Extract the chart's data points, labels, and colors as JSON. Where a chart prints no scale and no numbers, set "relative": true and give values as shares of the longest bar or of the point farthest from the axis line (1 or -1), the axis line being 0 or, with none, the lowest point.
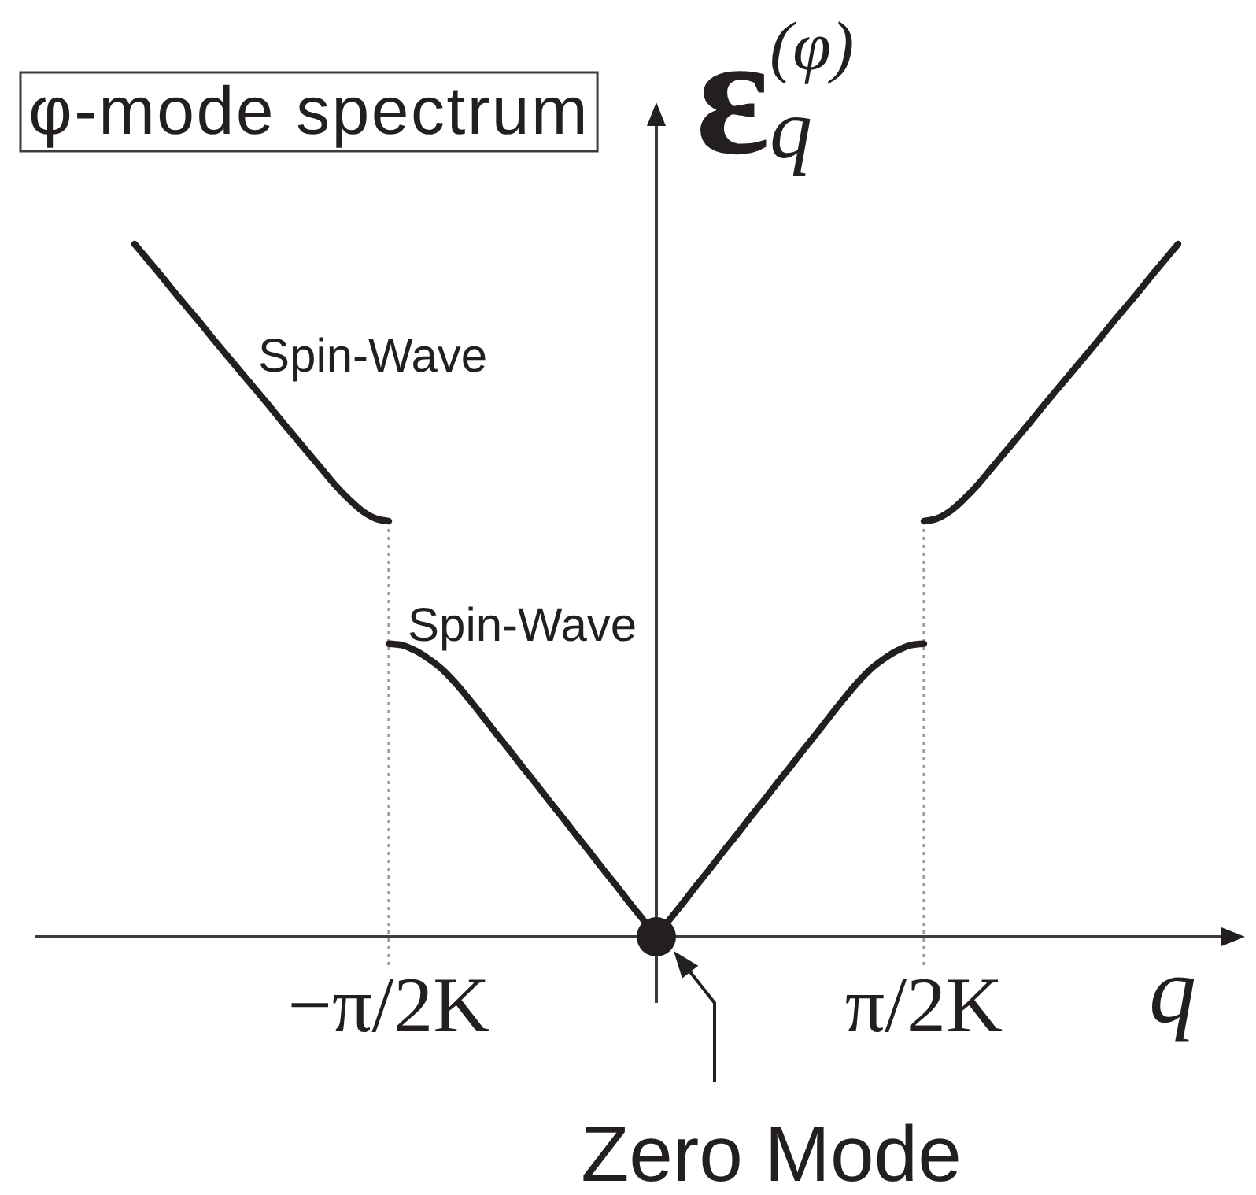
{
  "chart_data": {
    "type": "line",
    "relative": true,
    "title": "φ-mode spectrum",
    "xlabel": "q",
    "ylabel": "ε$_{q}$$^{(φ)}$",
    "tick_labels": "x",
    "line_style": "solid",
    "marker": "none",
    "categories": [
      null,
      null,
      null,
      null,
      null,
      null,
      null,
      null,
      null,
      null,
      null,
      null,
      null,
      null,
      null,
      null,
      null,
      null,
      null,
      null,
      null,
      null,
      null,
      null,
      "−π/2K",
      null,
      null,
      null,
      null,
      null,
      null,
      null,
      null,
      null,
      null,
      null,
      null,
      null,
      null,
      null,
      null,
      null,
      null,
      null,
      null,
      null,
      null,
      null,
      null,
      null,
      null,
      null,
      null,
      null,
      null,
      null,
      null,
      null,
      null,
      null,
      null,
      null,
      null,
      null,
      "π/2K",
      null,
      null,
      null,
      null,
      null,
      null,
      null,
      null,
      null,
      null,
      null,
      null,
      null,
      null,
      null,
      null,
      null,
      null,
      null,
      null,
      null,
      null,
      null,
      null
    ],
    "series": [
      {
        "color": "#231f20",
        "values": [
          null,
          null,
          null,
          null,
          null,
          1,
          0.977,
          0.954,
          0.93,
          0.907,
          0.884,
          0.86,
          0.837,
          0.814,
          0.791,
          0.768,
          0.744,
          0.721,
          0.698,
          0.675,
          0.652,
          0.632,
          0.615,
          0.604,
          0.6,
          null,
          null,
          null,
          null,
          null,
          null,
          null,
          null,
          null,
          null,
          null,
          null,
          null,
          null,
          null,
          null,
          null,
          null,
          null,
          null,
          null,
          null,
          null,
          null,
          null,
          null,
          null,
          null,
          null,
          null,
          null,
          null,
          null,
          null,
          null,
          null,
          null,
          null,
          null,
          0.6,
          0.604,
          0.615,
          0.632,
          0.652,
          0.675,
          0.698,
          0.721,
          0.744,
          0.768,
          0.791,
          0.814,
          0.837,
          0.86,
          0.884,
          0.907,
          0.93,
          0.954,
          0.977,
          1,
          null,
          null,
          null,
          null,
          null
        ]
      },
      {
        "color": "#231f20",
        "values": [
          null,
          null,
          null,
          null,
          null,
          null,
          null,
          null,
          null,
          null,
          null,
          null,
          null,
          null,
          null,
          null,
          null,
          null,
          null,
          null,
          null,
          null,
          null,
          null,
          0.423,
          0.421,
          0.413,
          0.401,
          0.386,
          0.366,
          0.343,
          0.319,
          0.294,
          0.27,
          0.245,
          0.221,
          0.196,
          0.172,
          0.147,
          0.123,
          0.098,
          0.074,
          0.049,
          0.025,
          0,
          0.025,
          0.049,
          0.074,
          0.098,
          0.123,
          0.147,
          0.172,
          0.196,
          0.221,
          0.245,
          0.27,
          0.294,
          0.319,
          0.343,
          0.366,
          0.386,
          0.401,
          0.413,
          0.421,
          0.423,
          null,
          null,
          null,
          null,
          null,
          null,
          null,
          null,
          null,
          null,
          null,
          null,
          null,
          null,
          null,
          null,
          null,
          null,
          null,
          null,
          null,
          null,
          null,
          null
        ]
      },
      {
        "type": "scatter",
        "color": "#231f20",
        "marker": "circle",
        "values": [
          null,
          null,
          null,
          null,
          null,
          null,
          null,
          null,
          null,
          null,
          null,
          null,
          null,
          null,
          null,
          null,
          null,
          null,
          null,
          null,
          null,
          null,
          null,
          null,
          null,
          null,
          null,
          null,
          null,
          null,
          null,
          null,
          null,
          null,
          null,
          null,
          null,
          null,
          null,
          null,
          null,
          null,
          null,
          null,
          0,
          null,
          null,
          null,
          null,
          null,
          null,
          null,
          null,
          null,
          null,
          null,
          null,
          null,
          null,
          null,
          null,
          null,
          null,
          null,
          null,
          null,
          null,
          null,
          null,
          null,
          null,
          null,
          null,
          null,
          null,
          null,
          null,
          null,
          null,
          null,
          null,
          null,
          null,
          null,
          null,
          null,
          null,
          null,
          null
        ]
      }
    ],
    "ref_lines": [
      {
        "axis": "x",
        "value": "−π/2K",
        "line_style": "dotted",
        "color": "#9a9a9a"
      },
      {
        "axis": "x",
        "value": "π/2K",
        "line_style": "dotted",
        "color": "#9a9a9a"
      }
    ],
    "annotations": [
      "Spin-Wave",
      {
        "text": "Spin-Wave",
        "x": "−π/2K",
        "y": 0.423
      },
      "Zero Mode"
    ]
  }
}
